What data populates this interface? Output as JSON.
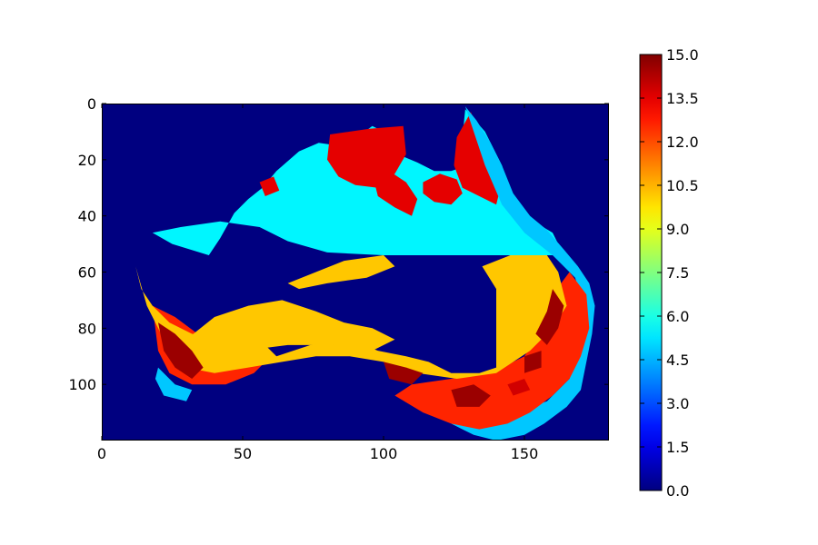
{
  "chart_data": {
    "type": "heatmap",
    "title": "",
    "xlabel": "",
    "ylabel": "",
    "xlim": [
      0,
      180
    ],
    "ylim": [
      120,
      0
    ],
    "x_ticks": [
      "0",
      "50",
      "100",
      "150"
    ],
    "y_ticks": [
      "0",
      "20",
      "40",
      "60",
      "80",
      "100"
    ],
    "colorbar": {
      "colormap": "jet",
      "vmin": 0.0,
      "vmax": 15.0,
      "ticks": [
        "0.0",
        "1.5",
        "3.0",
        "4.5",
        "6.0",
        "7.5",
        "9.0",
        "10.5",
        "12.0",
        "13.5",
        "15.0"
      ]
    },
    "grid": false,
    "background_value": 0.0,
    "regions": [
      {
        "value": 5.5,
        "points": [
          [
            57,
            30
          ],
          [
            62,
            24
          ],
          [
            70,
            17
          ],
          [
            77,
            14
          ],
          [
            84,
            15
          ],
          [
            88,
            13
          ],
          [
            92,
            11
          ],
          [
            96,
            8
          ],
          [
            100,
            10
          ],
          [
            105,
            18
          ],
          [
            112,
            21
          ],
          [
            118,
            24
          ],
          [
            124,
            24
          ],
          [
            130,
            22
          ],
          [
            128,
            12
          ],
          [
            129,
            2
          ],
          [
            136,
            10
          ],
          [
            142,
            22
          ],
          [
            145,
            32
          ],
          [
            150,
            40
          ],
          [
            160,
            46
          ],
          [
            164,
            54
          ],
          [
            140,
            54
          ],
          [
            118,
            54
          ],
          [
            100,
            54
          ],
          [
            80,
            53
          ],
          [
            66,
            49
          ],
          [
            56,
            44
          ],
          [
            42,
            42
          ],
          [
            28,
            44
          ],
          [
            18,
            46
          ],
          [
            25,
            50
          ],
          [
            38,
            54
          ],
          [
            42,
            48
          ],
          [
            47,
            39
          ],
          [
            52,
            34
          ]
        ]
      },
      {
        "value": 13.5,
        "points": [
          [
            81,
            11
          ],
          [
            88,
            10
          ],
          [
            95,
            9
          ],
          [
            107,
            8
          ],
          [
            108,
            18
          ],
          [
            104,
            25
          ],
          [
            98,
            30
          ],
          [
            90,
            29
          ],
          [
            84,
            26
          ],
          [
            80,
            20
          ]
        ]
      },
      {
        "value": 13.5,
        "points": [
          [
            96,
            25
          ],
          [
            102,
            24
          ],
          [
            108,
            28
          ],
          [
            112,
            34
          ],
          [
            110,
            40
          ],
          [
            104,
            37
          ],
          [
            98,
            33
          ]
        ]
      },
      {
        "value": 13.5,
        "points": [
          [
            114,
            28
          ],
          [
            120,
            25
          ],
          [
            126,
            27
          ],
          [
            128,
            32
          ],
          [
            124,
            36
          ],
          [
            118,
            35
          ],
          [
            114,
            32
          ]
        ]
      },
      {
        "value": 13.5,
        "points": [
          [
            126,
            12
          ],
          [
            131,
            3
          ],
          [
            134,
            12
          ],
          [
            139,
            20
          ],
          [
            142,
            28
          ],
          [
            140,
            36
          ],
          [
            134,
            33
          ],
          [
            128,
            30
          ],
          [
            125,
            22
          ]
        ]
      },
      {
        "value": 13.5,
        "points": [
          [
            56,
            28
          ],
          [
            61,
            26
          ],
          [
            63,
            31
          ],
          [
            58,
            33
          ]
        ]
      },
      {
        "value": 4.8,
        "points": [
          [
            129,
            1
          ],
          [
            133,
            6
          ],
          [
            138,
            14
          ],
          [
            142,
            22
          ],
          [
            146,
            32
          ],
          [
            152,
            40
          ],
          [
            158,
            45
          ],
          [
            164,
            52
          ],
          [
            169,
            58
          ],
          [
            173,
            64
          ],
          [
            175,
            72
          ],
          [
            174,
            82
          ],
          [
            172,
            92
          ],
          [
            170,
            102
          ],
          [
            165,
            108
          ],
          [
            157,
            114
          ],
          [
            150,
            118
          ],
          [
            140,
            120
          ],
          [
            132,
            118
          ],
          [
            124,
            114
          ],
          [
            140,
            112
          ],
          [
            158,
            106
          ],
          [
            166,
            98
          ],
          [
            170,
            86
          ],
          [
            171,
            72
          ],
          [
            168,
            62
          ],
          [
            160,
            54
          ],
          [
            150,
            46
          ],
          [
            142,
            36
          ],
          [
            136,
            22
          ]
        ]
      },
      {
        "value": 4.8,
        "points": [
          [
            20,
            94
          ],
          [
            26,
            100
          ],
          [
            32,
            102
          ],
          [
            30,
            106
          ],
          [
            22,
            104
          ],
          [
            19,
            98
          ]
        ]
      },
      {
        "value": 12.6,
        "points": [
          [
            166,
            60
          ],
          [
            172,
            68
          ],
          [
            173,
            80
          ],
          [
            170,
            90
          ],
          [
            166,
            98
          ],
          [
            160,
            104
          ],
          [
            152,
            110
          ],
          [
            144,
            114
          ],
          [
            134,
            116
          ],
          [
            124,
            114
          ],
          [
            114,
            110
          ],
          [
            104,
            104
          ],
          [
            110,
            100
          ],
          [
            124,
            98
          ],
          [
            138,
            96
          ],
          [
            150,
            90
          ],
          [
            156,
            80
          ],
          [
            160,
            68
          ]
        ]
      },
      {
        "value": 12.6,
        "points": [
          [
            18,
            72
          ],
          [
            26,
            76
          ],
          [
            34,
            82
          ],
          [
            42,
            86
          ],
          [
            52,
            88
          ],
          [
            60,
            90
          ],
          [
            54,
            96
          ],
          [
            44,
            100
          ],
          [
            32,
            100
          ],
          [
            24,
            96
          ],
          [
            20,
            88
          ]
        ]
      },
      {
        "value": 10.2,
        "points": [
          [
            12,
            58
          ],
          [
            14,
            66
          ],
          [
            18,
            72
          ],
          [
            24,
            78
          ],
          [
            32,
            82
          ],
          [
            44,
            84
          ],
          [
            58,
            86
          ],
          [
            62,
            90
          ],
          [
            74,
            86
          ],
          [
            88,
            84
          ],
          [
            98,
            88
          ],
          [
            108,
            90
          ],
          [
            116,
            92
          ],
          [
            124,
            96
          ],
          [
            134,
            96
          ],
          [
            140,
            94
          ],
          [
            140,
            80
          ],
          [
            140,
            66
          ],
          [
            135,
            58
          ],
          [
            145,
            54
          ],
          [
            158,
            54
          ],
          [
            162,
            60
          ],
          [
            165,
            72
          ],
          [
            160,
            80
          ],
          [
            152,
            88
          ],
          [
            140,
            96
          ],
          [
            126,
            98
          ],
          [
            112,
            96
          ],
          [
            100,
            92
          ],
          [
            88,
            90
          ],
          [
            76,
            90
          ],
          [
            64,
            92
          ],
          [
            52,
            94
          ],
          [
            40,
            96
          ],
          [
            30,
            94
          ],
          [
            24,
            88
          ],
          [
            20,
            80
          ],
          [
            16,
            72
          ]
        ]
      },
      {
        "value": 10.2,
        "points": [
          [
            30,
            84
          ],
          [
            40,
            76
          ],
          [
            52,
            72
          ],
          [
            64,
            70
          ],
          [
            76,
            74
          ],
          [
            86,
            78
          ],
          [
            96,
            80
          ],
          [
            104,
            84
          ],
          [
            96,
            88
          ],
          [
            82,
            86
          ],
          [
            66,
            86
          ],
          [
            50,
            88
          ],
          [
            38,
            88
          ]
        ]
      },
      {
        "value": 10.2,
        "points": [
          [
            66,
            64
          ],
          [
            76,
            60
          ],
          [
            86,
            56
          ],
          [
            100,
            54
          ],
          [
            104,
            58
          ],
          [
            94,
            62
          ],
          [
            80,
            64
          ],
          [
            70,
            66
          ]
        ]
      },
      {
        "value": 14.6,
        "points": [
          [
            20,
            78
          ],
          [
            26,
            82
          ],
          [
            32,
            88
          ],
          [
            36,
            94
          ],
          [
            32,
            98
          ],
          [
            26,
            94
          ],
          [
            22,
            88
          ]
        ]
      },
      {
        "value": 14.6,
        "points": [
          [
            160,
            66
          ],
          [
            164,
            72
          ],
          [
            162,
            80
          ],
          [
            158,
            86
          ],
          [
            154,
            82
          ],
          [
            158,
            74
          ]
        ]
      },
      {
        "value": 14.6,
        "points": [
          [
            124,
            102
          ],
          [
            132,
            100
          ],
          [
            138,
            104
          ],
          [
            134,
            108
          ],
          [
            126,
            108
          ]
        ]
      },
      {
        "value": 14.6,
        "points": [
          [
            100,
            92
          ],
          [
            108,
            94
          ],
          [
            114,
            96
          ],
          [
            110,
            100
          ],
          [
            102,
            98
          ]
        ]
      },
      {
        "value": 14.6,
        "points": [
          [
            150,
            90
          ],
          [
            156,
            88
          ],
          [
            156,
            94
          ],
          [
            150,
            96
          ]
        ]
      },
      {
        "value": 13.8,
        "points": [
          [
            144,
            100
          ],
          [
            150,
            98
          ],
          [
            152,
            102
          ],
          [
            146,
            104
          ]
        ]
      }
    ]
  }
}
